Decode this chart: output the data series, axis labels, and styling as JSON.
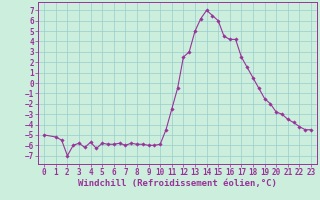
{
  "x": [
    0,
    1,
    1.5,
    2,
    2.5,
    3,
    3.5,
    4,
    4.5,
    5,
    5.5,
    6,
    6.5,
    7,
    7.5,
    8,
    8.5,
    9,
    9.5,
    10,
    10.5,
    11,
    11.5,
    12,
    12.5,
    13,
    13.5,
    14,
    14.5,
    15,
    15.5,
    16,
    16.5,
    17,
    17.5,
    18,
    18.5,
    19,
    19.5,
    20,
    20.5,
    21,
    21.5,
    22,
    22.5,
    23
  ],
  "y": [
    -5.0,
    -5.2,
    -5.5,
    -7.0,
    -6.0,
    -5.8,
    -6.2,
    -5.7,
    -6.3,
    -5.8,
    -5.9,
    -5.9,
    -5.8,
    -6.0,
    -5.8,
    -5.9,
    -5.9,
    -6.0,
    -6.0,
    -5.9,
    -4.5,
    -2.5,
    -0.5,
    2.5,
    3.0,
    5.0,
    6.2,
    7.0,
    6.5,
    6.0,
    4.5,
    4.2,
    4.2,
    2.5,
    1.5,
    0.5,
    -0.5,
    -1.5,
    -2.0,
    -2.8,
    -3.0,
    -3.5,
    -3.8,
    -4.2,
    -4.5,
    -4.5
  ],
  "xlim": [
    -0.5,
    23.5
  ],
  "ylim": [
    -7.8,
    7.8
  ],
  "xticks": [
    0,
    1,
    2,
    3,
    4,
    5,
    6,
    7,
    8,
    9,
    10,
    11,
    12,
    13,
    14,
    15,
    16,
    17,
    18,
    19,
    20,
    21,
    22,
    23
  ],
  "yticks": [
    7,
    6,
    5,
    4,
    3,
    2,
    1,
    0,
    -1,
    -2,
    -3,
    -4,
    -5,
    -6,
    -7
  ],
  "xlabel": "Windchill (Refroidissement éolien,°C)",
  "line_color": "#993399",
  "marker": "D",
  "marker_size": 1.8,
  "bg_color": "#cceedd",
  "grid_color": "#99cccc",
  "tick_fontsize": 5.5,
  "label_fontsize": 6.5
}
